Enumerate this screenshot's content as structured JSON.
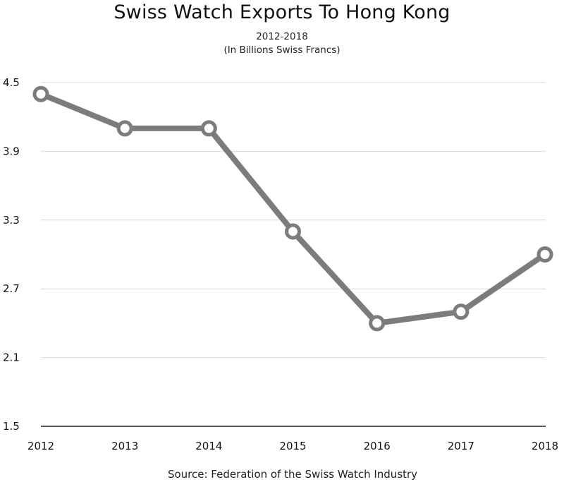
{
  "chart_data": {
    "type": "line",
    "title": "Swiss Watch Exports To Hong Kong",
    "subtitle_lines": [
      "2012-2018",
      "(In Billions Swiss Francs)"
    ],
    "source": "Source: Federation of the Swiss Watch Industry",
    "x": [
      "2012",
      "2013",
      "2014",
      "2015",
      "2016",
      "2017",
      "2018"
    ],
    "series": [
      {
        "values": [
          4.4,
          4.1,
          4.1,
          3.2,
          2.4,
          2.5,
          3.0
        ]
      }
    ],
    "ylim": [
      1.5,
      4.5
    ],
    "yticks": [
      "4.5",
      "3.9",
      "3.3",
      "2.7",
      "2.1",
      "1.5"
    ],
    "grid": true,
    "line_color": "#7a7d79",
    "grid_color": "#d9d9d9",
    "axis_color": "#222222"
  }
}
